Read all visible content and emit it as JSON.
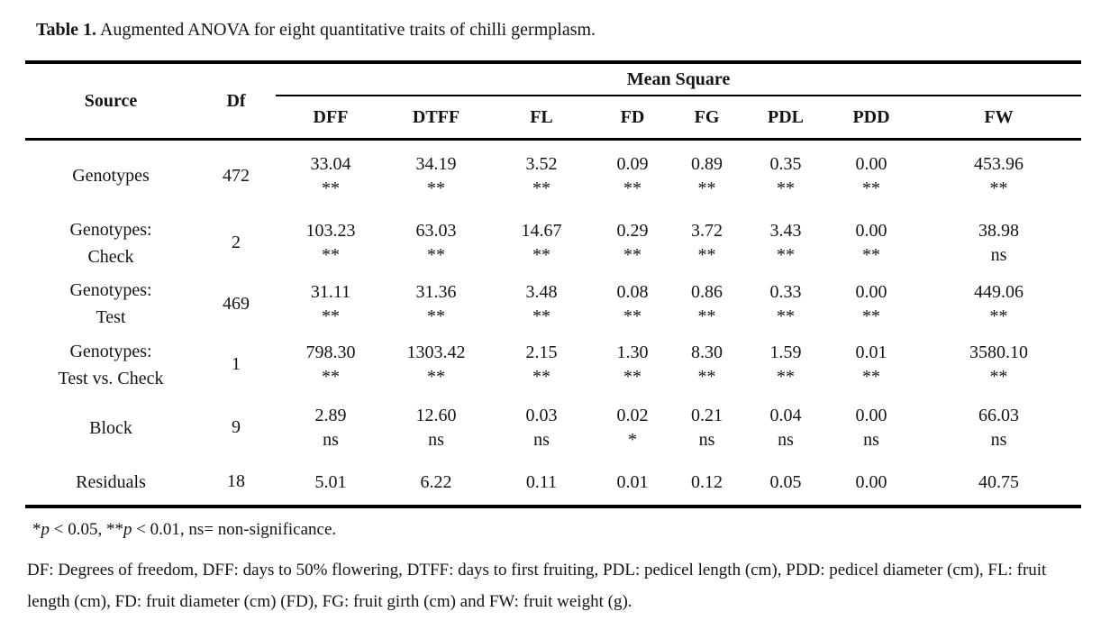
{
  "page": {
    "background": "#ffffff",
    "text_color": "#141414",
    "rule_color": "#000000"
  },
  "title": {
    "label": "Table 1.",
    "caption": " Augmented ANOVA for eight quantitative traits of chilli germplasm."
  },
  "table": {
    "headers": {
      "source": "Source",
      "df": "Df",
      "group": "Mean Square"
    },
    "trait_columns": [
      "DFF",
      "DTFF",
      "FL",
      "FD",
      "FG",
      "PDL",
      "PDD",
      "FW"
    ],
    "rows": [
      {
        "source_line1": "Genotypes",
        "source_line2": "",
        "df": "472",
        "values": [
          "33.04",
          "34.19",
          "3.52",
          "0.09",
          "0.89",
          "0.35",
          "0.00",
          "453.96"
        ],
        "sigs": [
          "**",
          "**",
          "**",
          "**",
          "**",
          "**",
          "**",
          "**"
        ]
      },
      {
        "source_line1": "Genotypes:",
        "source_line2": "Check",
        "df": "2",
        "values": [
          "103.23",
          "63.03",
          "14.67",
          "0.29",
          "3.72",
          "3.43",
          "0.00",
          "38.98"
        ],
        "sigs": [
          "**",
          "**",
          "**",
          "**",
          "**",
          "**",
          "**",
          "ns"
        ]
      },
      {
        "source_line1": "Genotypes:",
        "source_line2": "Test",
        "df": "469",
        "values": [
          "31.11",
          "31.36",
          "3.48",
          "0.08",
          "0.86",
          "0.33",
          "0.00",
          "449.06"
        ],
        "sigs": [
          "**",
          "**",
          "**",
          "**",
          "**",
          "**",
          "**",
          "**"
        ]
      },
      {
        "source_line1": "Genotypes:",
        "source_line2": "Test vs. Check",
        "df": "1",
        "values": [
          "798.30",
          "1303.42",
          "2.15",
          "1.30",
          "8.30",
          "1.59",
          "0.01",
          "3580.10"
        ],
        "sigs": [
          "**",
          "**",
          "**",
          "**",
          "**",
          "**",
          "**",
          "**"
        ]
      },
      {
        "source_line1": "Block",
        "source_line2": "",
        "df": "9",
        "values": [
          "2.89",
          "12.60",
          "0.03",
          "0.02",
          "0.21",
          "0.04",
          "0.00",
          "66.03"
        ],
        "sigs": [
          "ns",
          "ns",
          "ns",
          "*",
          "ns",
          "ns",
          "ns",
          "ns"
        ]
      },
      {
        "source_line1": "Residuals",
        "source_line2": "",
        "df": "18",
        "values": [
          "5.01",
          "6.22",
          "0.11",
          "0.01",
          "0.12",
          "0.05",
          "0.00",
          "40.75"
        ],
        "sigs": [
          "",
          "",
          "",
          "",
          "",
          "",
          "",
          ""
        ]
      }
    ]
  },
  "footnotes": {
    "sig": {
      "s1": "*",
      "p1": "p",
      "s2": " < 0.05, **",
      "p2": "p",
      "s3": " < 0.01, ns= non-significance."
    },
    "abbreviations": "DF: Degrees of freedom, DFF: days to 50% flowering, DTFF: days to first fruiting, PDL: pedicel length (cm), PDD: pedicel diameter (cm), FL: fruit length (cm), FD: fruit diameter (cm) (FD), FG: fruit girth (cm) and FW: fruit weight (g)."
  }
}
